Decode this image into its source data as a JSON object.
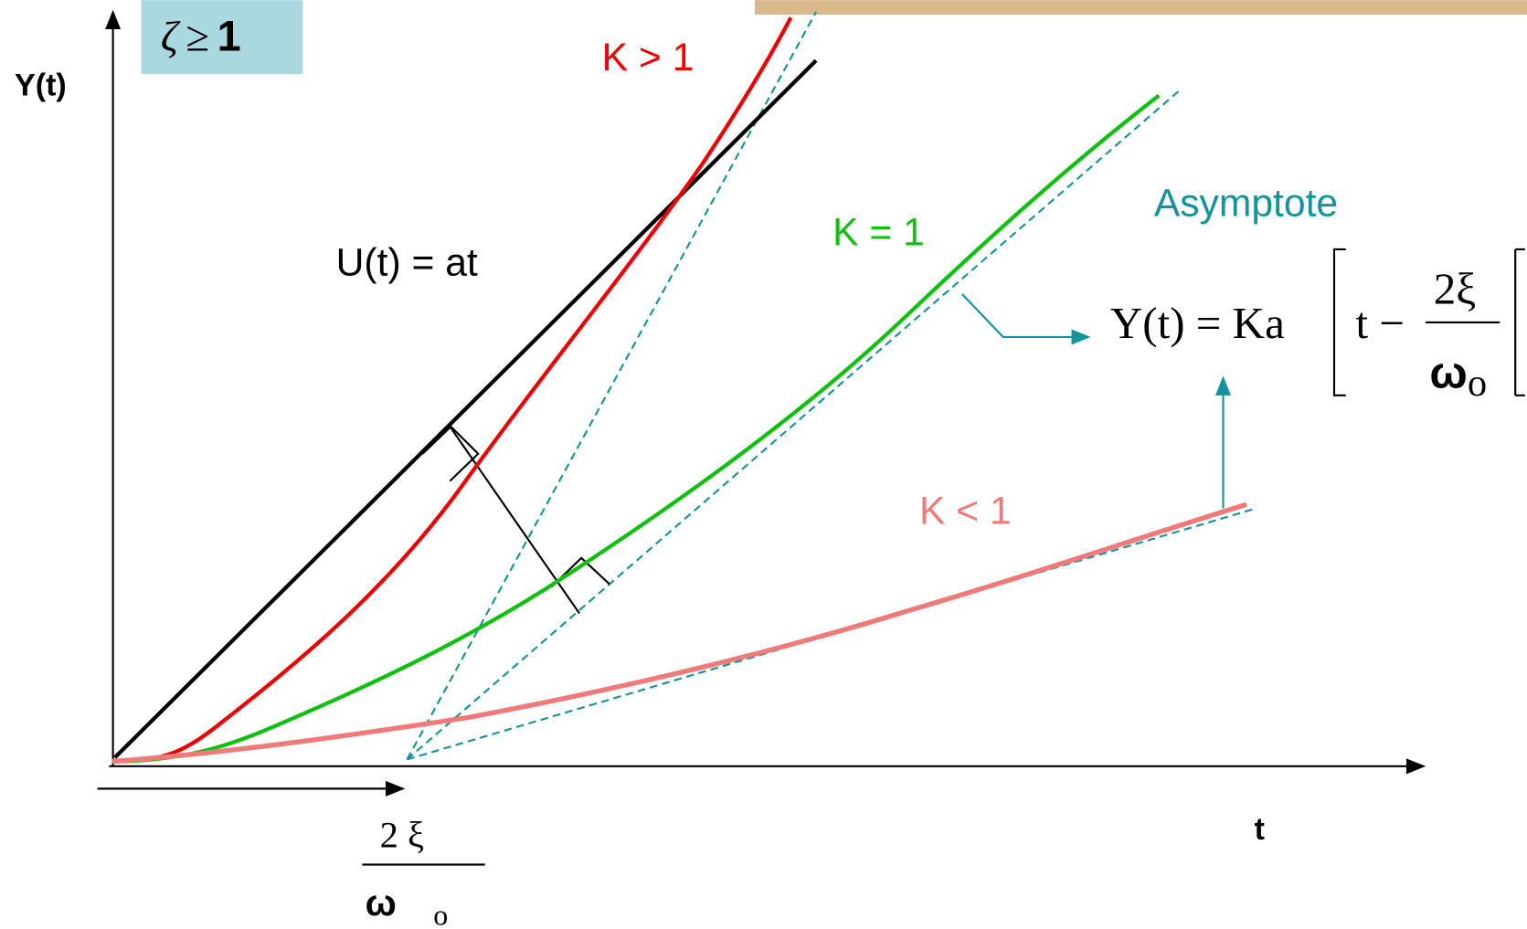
{
  "badge": {
    "symbol": "ζ",
    "relation": "≥",
    "value": "1"
  },
  "axes": {
    "y_label": "Y(t)",
    "x_label": "t"
  },
  "input_label": "U(t) = at",
  "curves": [
    {
      "label": "K > 1"
    },
    {
      "label": "K = 1"
    },
    {
      "label": "K < 1"
    }
  ],
  "asymptote": {
    "label": "Asymptote",
    "formula": {
      "lhs": "Y(t) = Ka",
      "term": "t −",
      "numerator": "2ξ",
      "denominator": "ω",
      "subscript": "o"
    }
  },
  "offset": {
    "numerator": "2  ξ",
    "denominator": "ω",
    "subscript": "o"
  }
}
